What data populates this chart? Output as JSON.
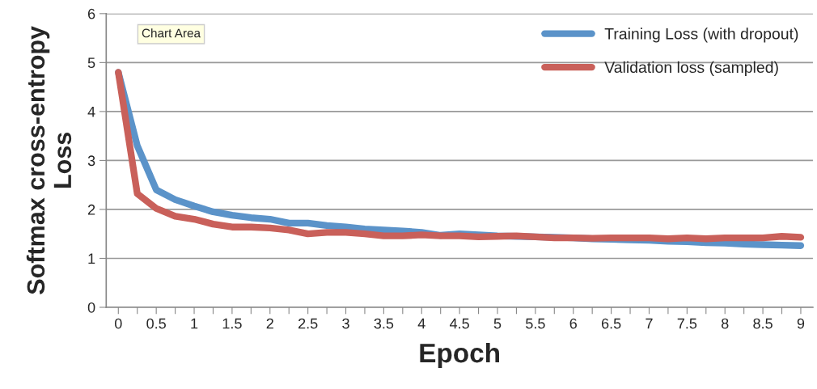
{
  "chart_data": {
    "type": "line",
    "xlabel": "Epoch",
    "ylabel": "Softmax cross-entropy\nLoss",
    "annotations": [
      "Chart Area"
    ],
    "x": [
      0,
      0.25,
      0.5,
      0.75,
      1,
      1.25,
      1.5,
      1.75,
      2,
      2.25,
      2.5,
      2.75,
      3,
      3.25,
      3.5,
      3.75,
      4,
      4.25,
      4.5,
      4.75,
      5,
      5.25,
      5.5,
      5.75,
      6,
      6.25,
      6.5,
      6.75,
      7,
      7.25,
      7.5,
      7.75,
      8,
      8.25,
      8.5,
      8.75,
      9
    ],
    "series": [
      {
        "name": "Training Loss (with dropout)",
        "color": "#5b93c9",
        "values": [
          4.8,
          3.3,
          2.4,
          2.2,
          2.07,
          1.95,
          1.88,
          1.83,
          1.8,
          1.72,
          1.72,
          1.67,
          1.64,
          1.6,
          1.58,
          1.56,
          1.53,
          1.47,
          1.5,
          1.48,
          1.46,
          1.45,
          1.44,
          1.43,
          1.42,
          1.4,
          1.39,
          1.38,
          1.37,
          1.35,
          1.34,
          1.32,
          1.31,
          1.29,
          1.28,
          1.27,
          1.26
        ]
      },
      {
        "name": "Validation loss (sampled)",
        "color": "#c9605a",
        "values": [
          4.8,
          2.32,
          2.02,
          1.86,
          1.8,
          1.7,
          1.64,
          1.64,
          1.62,
          1.58,
          1.5,
          1.53,
          1.53,
          1.5,
          1.46,
          1.46,
          1.48,
          1.46,
          1.46,
          1.44,
          1.45,
          1.46,
          1.44,
          1.42,
          1.42,
          1.41,
          1.42,
          1.42,
          1.42,
          1.4,
          1.42,
          1.4,
          1.42,
          1.42,
          1.42,
          1.45,
          1.43
        ]
      }
    ],
    "xlim": [
      -0.16,
      9.16
    ],
    "xticks": [
      0,
      {
        "value": 0.25,
        "label": null
      },
      0.5,
      {
        "value": 0.75,
        "label": null
      },
      1,
      {
        "value": 1.25,
        "label": null
      },
      1.5,
      {
        "value": 1.75,
        "label": null
      },
      2,
      {
        "value": 2.25,
        "label": null
      },
      2.5,
      {
        "value": 2.75,
        "label": null
      },
      3,
      {
        "value": 3.25,
        "label": null
      },
      3.5,
      {
        "value": 3.75,
        "label": null
      },
      4,
      {
        "value": 4.25,
        "label": null
      },
      4.5,
      {
        "value": 4.75,
        "label": null
      },
      5,
      {
        "value": 5.25,
        "label": null
      },
      5.5,
      {
        "value": 5.75,
        "label": null
      },
      6,
      {
        "value": 6.25,
        "label": null
      },
      6.5,
      {
        "value": 6.75,
        "label": null
      },
      7,
      {
        "value": 7.25,
        "label": null
      },
      7.5,
      {
        "value": 7.75,
        "label": null
      },
      8,
      {
        "value": 8.25,
        "label": null
      },
      8.5,
      {
        "value": 8.75,
        "label": null
      },
      9
    ],
    "ylim": [
      0,
      6
    ],
    "yticks": [
      0,
      1,
      2,
      3,
      4,
      5,
      6
    ],
    "grid": "y",
    "legend": "top right",
    "marker": "none",
    "line_style": "solid"
  }
}
